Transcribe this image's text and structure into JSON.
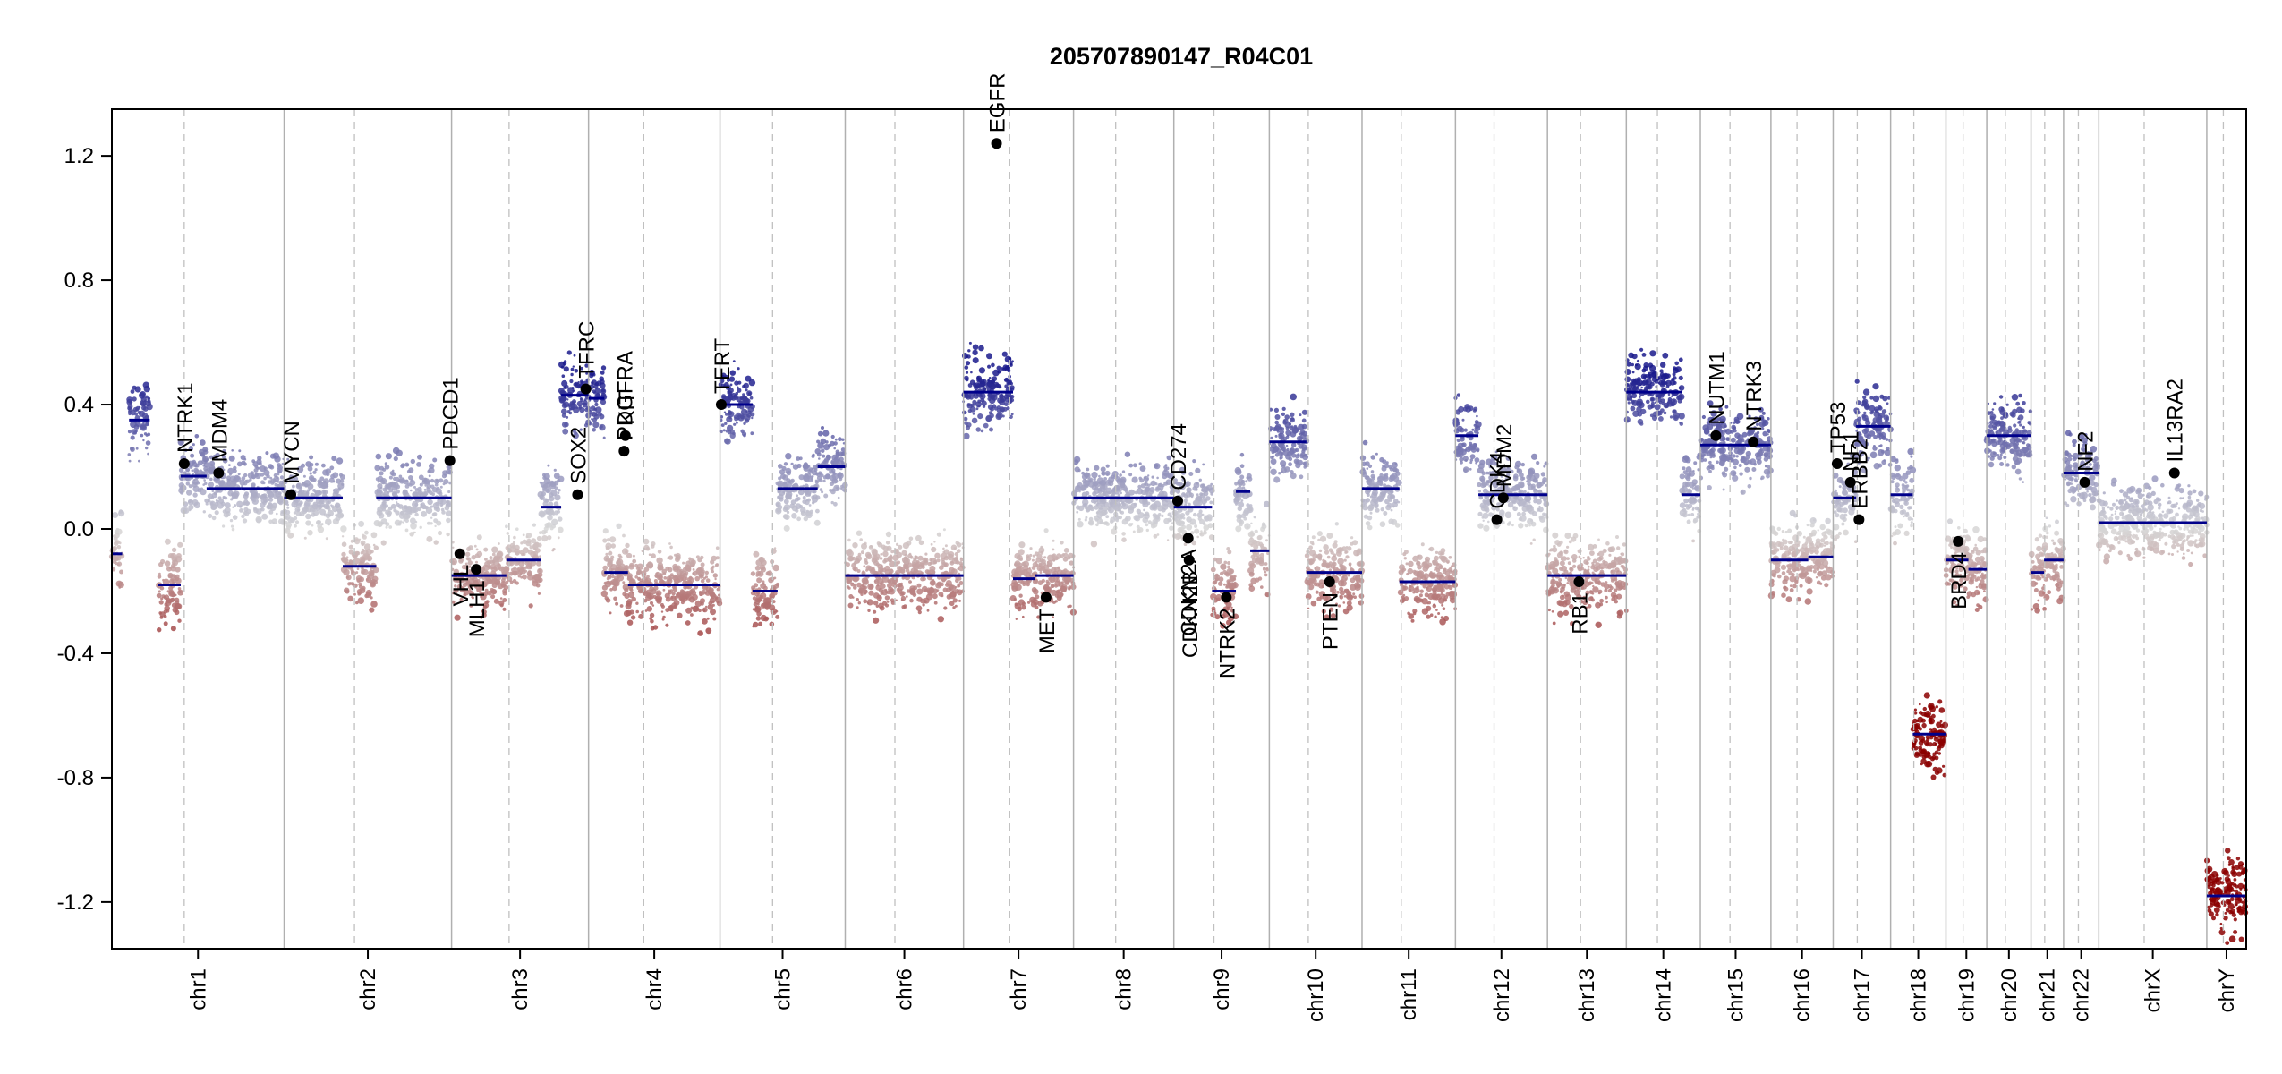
{
  "chart_data": {
    "type": "scatter",
    "title": "205707890147_R04C01",
    "xlabel": "",
    "ylabel": "",
    "ylim": [
      -1.35,
      1.35
    ],
    "yticks": [
      1.2,
      0.8,
      0.4,
      0.0,
      -0.4,
      -0.8,
      -1.2
    ],
    "ytick_labels": [
      "1.2",
      "0.8",
      "0.4",
      "0.0",
      "-0.4",
      "-0.8",
      "-1.2"
    ],
    "grid": false,
    "colors": {
      "gain": "#1a1a8c",
      "neutral": "#cfcfcf",
      "loss": "#8b0000",
      "segment": "#00008b",
      "boundary": "#b0b0b0",
      "marker": "#000000"
    },
    "chromosomes": [
      {
        "name": "chr1",
        "len": 249,
        "arms": [
          [
            0,
            0.06,
            -0.08
          ],
          [
            0.1,
            0.22,
            0.35
          ],
          [
            0.27,
            0.4,
            -0.18
          ],
          [
            0.4,
            0.55,
            0.17
          ],
          [
            0.55,
            0.75,
            0.13
          ],
          [
            0.75,
            1.0,
            0.13
          ]
        ]
      },
      {
        "name": "chr2",
        "len": 242,
        "arms": [
          [
            0,
            0.35,
            0.1
          ],
          [
            0.35,
            0.55,
            -0.12
          ],
          [
            0.55,
            1.0,
            0.1
          ]
        ]
      },
      {
        "name": "chr3",
        "len": 198,
        "arms": [
          [
            0,
            0.4,
            -0.15
          ],
          [
            0.4,
            0.65,
            -0.1
          ],
          [
            0.65,
            0.8,
            0.07
          ],
          [
            0.8,
            1.0,
            0.43
          ]
        ]
      },
      {
        "name": "chr4",
        "len": 190,
        "arms": [
          [
            0,
            0.12,
            0.42
          ],
          [
            0.12,
            0.3,
            -0.14
          ],
          [
            0.3,
            1.0,
            -0.18
          ]
        ]
      },
      {
        "name": "chr5",
        "len": 181,
        "arms": [
          [
            0,
            0.26,
            0.4
          ],
          [
            0.26,
            0.46,
            -0.2
          ],
          [
            0.46,
            0.78,
            0.13
          ],
          [
            0.78,
            1.0,
            0.2
          ]
        ]
      },
      {
        "name": "chr6",
        "len": 171,
        "arms": [
          [
            0,
            1.0,
            -0.15
          ]
        ]
      },
      {
        "name": "chr7",
        "len": 159,
        "arms": [
          [
            0,
            0.45,
            0.44
          ],
          [
            0.45,
            0.65,
            -0.16
          ],
          [
            0.65,
            1.0,
            -0.15
          ]
        ]
      },
      {
        "name": "chr8",
        "len": 145,
        "arms": [
          [
            0,
            1.0,
            0.1
          ]
        ]
      },
      {
        "name": "chr9",
        "len": 138,
        "arms": [
          [
            0,
            0.4,
            0.07
          ],
          [
            0.4,
            0.65,
            -0.2
          ],
          [
            0.65,
            0.8,
            0.12
          ],
          [
            0.8,
            1.0,
            -0.07
          ]
        ]
      },
      {
        "name": "chr10",
        "len": 134,
        "arms": [
          [
            0,
            0.4,
            0.28
          ],
          [
            0.4,
            1.0,
            -0.14
          ]
        ]
      },
      {
        "name": "chr11",
        "len": 135,
        "arms": [
          [
            0,
            0.4,
            0.13
          ],
          [
            0.4,
            1.0,
            -0.17
          ]
        ]
      },
      {
        "name": "chr12",
        "len": 133,
        "arms": [
          [
            0,
            0.25,
            0.3
          ],
          [
            0.25,
            1.0,
            0.11
          ]
        ]
      },
      {
        "name": "chr13",
        "len": 114,
        "arms": [
          [
            0,
            1.0,
            -0.15
          ]
        ]
      },
      {
        "name": "chr14",
        "len": 107,
        "arms": [
          [
            0,
            0.75,
            0.44
          ],
          [
            0.75,
            1.0,
            0.11
          ]
        ]
      },
      {
        "name": "chr15",
        "len": 102,
        "arms": [
          [
            0,
            1.0,
            0.27
          ]
        ]
      },
      {
        "name": "chr16",
        "len": 90,
        "arms": [
          [
            0,
            0.6,
            -0.1
          ],
          [
            0.6,
            1.0,
            -0.09
          ]
        ]
      },
      {
        "name": "chr17",
        "len": 83,
        "arms": [
          [
            0,
            0.4,
            0.1
          ],
          [
            0.4,
            1.0,
            0.33
          ]
        ]
      },
      {
        "name": "chr18",
        "len": 80,
        "arms": [
          [
            0,
            0.4,
            0.11
          ],
          [
            0.4,
            1.0,
            -0.66
          ]
        ]
      },
      {
        "name": "chr19",
        "len": 59,
        "arms": [
          [
            0,
            0.55,
            -0.1
          ],
          [
            0.55,
            1.0,
            -0.13
          ]
        ]
      },
      {
        "name": "chr20",
        "len": 64,
        "arms": [
          [
            0,
            1.0,
            0.3
          ]
        ]
      },
      {
        "name": "chr21",
        "len": 47,
        "arms": [
          [
            0,
            0.4,
            -0.14
          ],
          [
            0.4,
            1.0,
            -0.1
          ]
        ]
      },
      {
        "name": "chr22",
        "len": 51,
        "arms": [
          [
            0,
            1.0,
            0.18
          ]
        ]
      },
      {
        "name": "chrX",
        "len": 156,
        "arms": [
          [
            0,
            1.0,
            0.02
          ]
        ]
      },
      {
        "name": "chrY",
        "len": 57,
        "arms": [
          [
            0,
            1.0,
            -1.18
          ]
        ]
      }
    ],
    "genes": [
      {
        "name": "NTRK1",
        "chr": "chr1",
        "pos": 0.42,
        "y": 0.21
      },
      {
        "name": "MDM4",
        "chr": "chr1",
        "pos": 0.62,
        "y": 0.18
      },
      {
        "name": "MYCN",
        "chr": "chr2",
        "pos": 0.04,
        "y": 0.11
      },
      {
        "name": "PDCD1",
        "chr": "chr2",
        "pos": 0.99,
        "y": 0.22
      },
      {
        "name": "VHL",
        "chr": "chr3",
        "pos": 0.06,
        "y": -0.08
      },
      {
        "name": "MLH1",
        "chr": "chr3",
        "pos": 0.18,
        "y": -0.13
      },
      {
        "name": "SOX2",
        "chr": "chr3",
        "pos": 0.92,
        "y": 0.11
      },
      {
        "name": "TFRC",
        "chr": "chr3",
        "pos": 0.98,
        "y": 0.45
      },
      {
        "name": "PDGFRA",
        "chr": "chr4",
        "pos": 0.27,
        "y": 0.25
      },
      {
        "name": "KIT",
        "chr": "chr4",
        "pos": 0.28,
        "y": 0.3
      },
      {
        "name": "EGFR",
        "chr": "chr7",
        "pos": 0.3,
        "y": 1.24
      },
      {
        "name": "TERT",
        "chr": "chr5",
        "pos": 0.01,
        "y": 0.4
      },
      {
        "name": "MET",
        "chr": "chr7",
        "pos": 0.75,
        "y": -0.22
      },
      {
        "name": "CD274",
        "chr": "chr9",
        "pos": 0.04,
        "y": 0.09
      },
      {
        "name": "CDKN2A",
        "chr": "chr9",
        "pos": 0.15,
        "y": -0.03
      },
      {
        "name": "CDKN2B",
        "chr": "chr9",
        "pos": 0.16,
        "y": -0.1
      },
      {
        "name": "NTRK2",
        "chr": "chr9",
        "pos": 0.55,
        "y": -0.22
      },
      {
        "name": "PTEN",
        "chr": "chr10",
        "pos": 0.65,
        "y": -0.17
      },
      {
        "name": "CDK4",
        "chr": "chr12",
        "pos": 0.45,
        "y": 0.03
      },
      {
        "name": "MDM2",
        "chr": "chr12",
        "pos": 0.52,
        "y": 0.1
      },
      {
        "name": "RB1",
        "chr": "chr13",
        "pos": 0.4,
        "y": -0.17
      },
      {
        "name": "NUTM1",
        "chr": "chr15",
        "pos": 0.22,
        "y": 0.3
      },
      {
        "name": "NTRK3",
        "chr": "chr15",
        "pos": 0.75,
        "y": 0.28
      },
      {
        "name": "TP53",
        "chr": "chr17",
        "pos": 0.07,
        "y": 0.21
      },
      {
        "name": "NF1",
        "chr": "chr17",
        "pos": 0.3,
        "y": 0.15
      },
      {
        "name": "ERBB2",
        "chr": "chr17",
        "pos": 0.45,
        "y": 0.03
      },
      {
        "name": "BRD4",
        "chr": "chr19",
        "pos": 0.3,
        "y": -0.04
      },
      {
        "name": "NF2",
        "chr": "chr22",
        "pos": 0.6,
        "y": 0.15
      },
      {
        "name": "IL13RA2",
        "chr": "chrX",
        "pos": 0.7,
        "y": 0.18
      }
    ]
  }
}
